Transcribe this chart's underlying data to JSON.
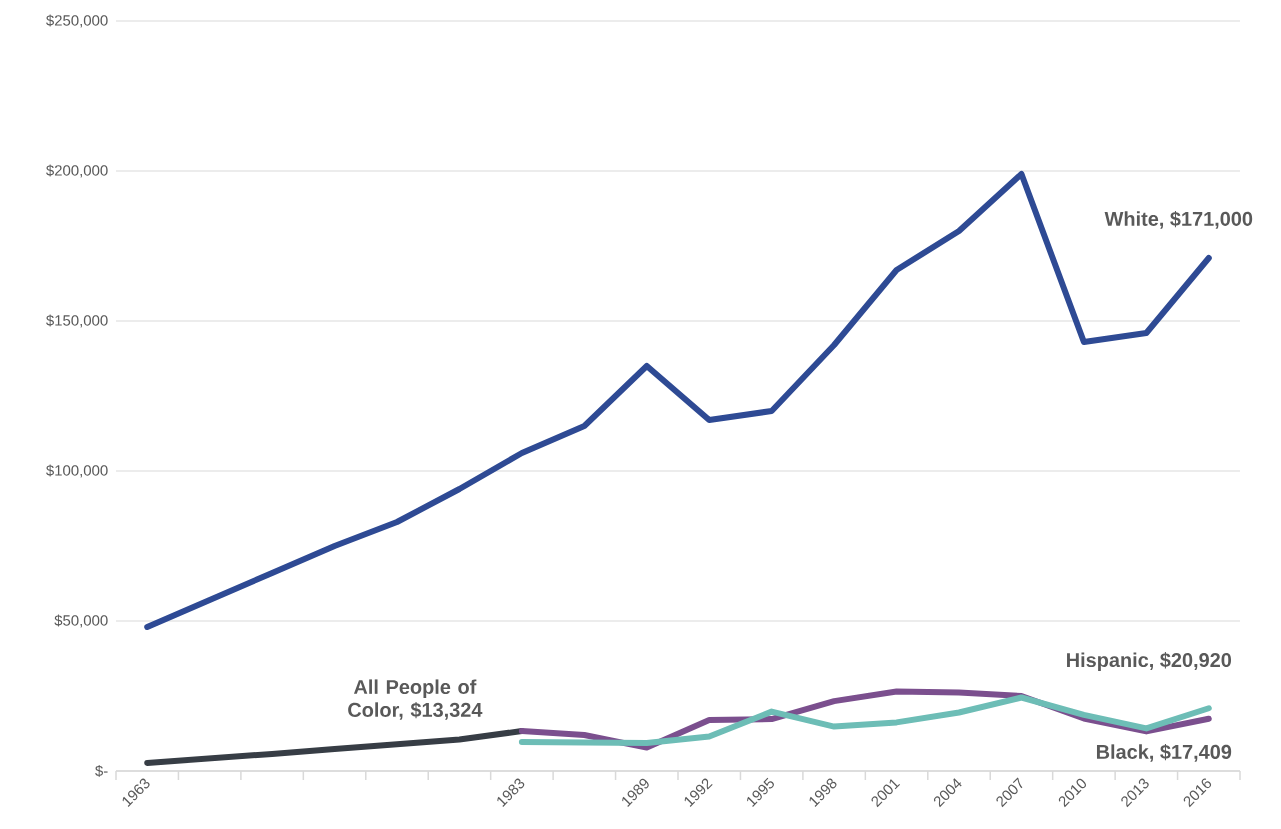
{
  "chart_data": {
    "type": "line",
    "categories": [
      "1963",
      null,
      null,
      null,
      null,
      null,
      "1983",
      null,
      "1989",
      "1992",
      "1995",
      "1998",
      "2001",
      "2004",
      "2007",
      "2010",
      "2013",
      "2016"
    ],
    "series": [
      {
        "name": "White, $171,000",
        "color": "#2e4a94",
        "values": [
          48000,
          57000,
          66000,
          75000,
          83000,
          94000,
          106000,
          115000,
          135000,
          117000,
          120000,
          142000,
          167000,
          180000,
          199000,
          143000,
          146000,
          171000
        ]
      },
      {
        "name": "All People of Color, $13,324",
        "color": "#373d45",
        "values": [
          2700,
          4200,
          5700,
          7300,
          8900,
          10500,
          13324,
          null,
          null,
          null,
          null,
          null,
          null,
          null,
          null,
          null,
          null,
          null
        ]
      },
      {
        "name": "Black, $17,409",
        "color": "#7b4f8e",
        "values": [
          null,
          null,
          null,
          null,
          null,
          null,
          13324,
          12000,
          7800,
          17000,
          17300,
          23300,
          26500,
          26200,
          25000,
          17500,
          13200,
          17409
        ]
      },
      {
        "name": "Hispanic, $20,920",
        "color": "#6dbdb6",
        "values": [
          null,
          null,
          null,
          null,
          null,
          null,
          9700,
          9500,
          9300,
          11500,
          19800,
          14800,
          16200,
          19500,
          24500,
          18700,
          14200,
          20920
        ]
      }
    ],
    "ylim": [
      0,
      250000
    ],
    "yticks": [
      {
        "value": 0,
        "label": "$-"
      },
      {
        "value": 50000,
        "label": "$50,000"
      },
      {
        "value": 100000,
        "label": "$100,000"
      },
      {
        "value": 150000,
        "label": "$150,000"
      },
      {
        "value": 200000,
        "label": "$200,000"
      },
      {
        "value": 250000,
        "label": "$250,000"
      }
    ],
    "grid": "y"
  }
}
